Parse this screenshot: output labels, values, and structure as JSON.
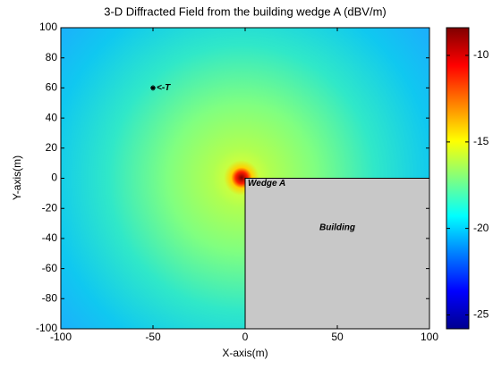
{
  "chart_data": {
    "type": "heatmap",
    "title": "3-D Diffracted Field from the building wedge A (dBV/m)",
    "xlabel": "X-axis(m)",
    "ylabel": "Y-axis(m)",
    "xlim": [
      -100,
      100
    ],
    "ylim": [
      -100,
      100
    ],
    "xticks": [
      -100,
      -50,
      0,
      50,
      100
    ],
    "yticks": [
      -100,
      -80,
      -60,
      -40,
      -20,
      0,
      20,
      40,
      60,
      80,
      100
    ],
    "colormap": "jet",
    "clim": [
      -25.8,
      -8.4
    ],
    "cticks": [
      -25,
      -20,
      -15,
      -10
    ],
    "building": {
      "label": "Building",
      "xlim": [
        0,
        100
      ],
      "ylim": [
        -100,
        0
      ],
      "color": "#c8c8c8"
    },
    "wedge_label": "Wedge A",
    "transmitter": {
      "label": "<-T",
      "x": -50,
      "y": 60
    }
  }
}
